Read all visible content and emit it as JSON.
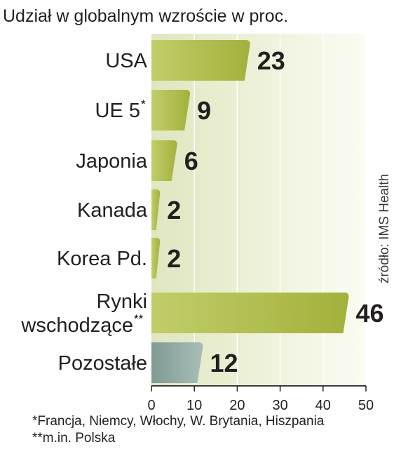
{
  "chart_data": {
    "type": "bar",
    "orientation": "horizontal",
    "title": "Udział w globalnym wzroście w proc.",
    "categories": [
      "USA",
      "UE 5",
      "Japonia",
      "Kanada",
      "Korea Pd.",
      "Rynki wschodzące",
      "Pozostałe"
    ],
    "category_lines": [
      [
        "USA"
      ],
      [
        "UE 5"
      ],
      [
        "Japonia"
      ],
      [
        "Kanada"
      ],
      [
        "Korea Pd."
      ],
      [
        "Rynki",
        "wschodzące"
      ],
      [
        "Pozostałe"
      ]
    ],
    "category_superscripts": [
      "",
      "*",
      "",
      "",
      "",
      "**",
      ""
    ],
    "values": [
      23,
      9,
      6,
      2,
      2,
      46,
      12
    ],
    "value_labels": [
      "23",
      "9",
      "6",
      "2",
      "2",
      "46",
      "12"
    ],
    "xlim": [
      0,
      50
    ],
    "xticks": [
      "0",
      "10",
      "20",
      "30",
      "40",
      "50"
    ],
    "grid": true,
    "colors": {
      "bar_main": "#a3b13b",
      "bar_highlight": "#c2cd6a",
      "bar_other": "#7f9b94",
      "bar_other_highlight": "#a9bdb7",
      "plot_bg_left": "#dfe6bf",
      "plot_bg_right": "#fbfcf3"
    },
    "footnotes": [
      "*Francja, Niemcy, Włochy, W. Brytania, Hiszpania",
      "**m.in. Polska"
    ],
    "source": "źródło: IMS Health"
  }
}
